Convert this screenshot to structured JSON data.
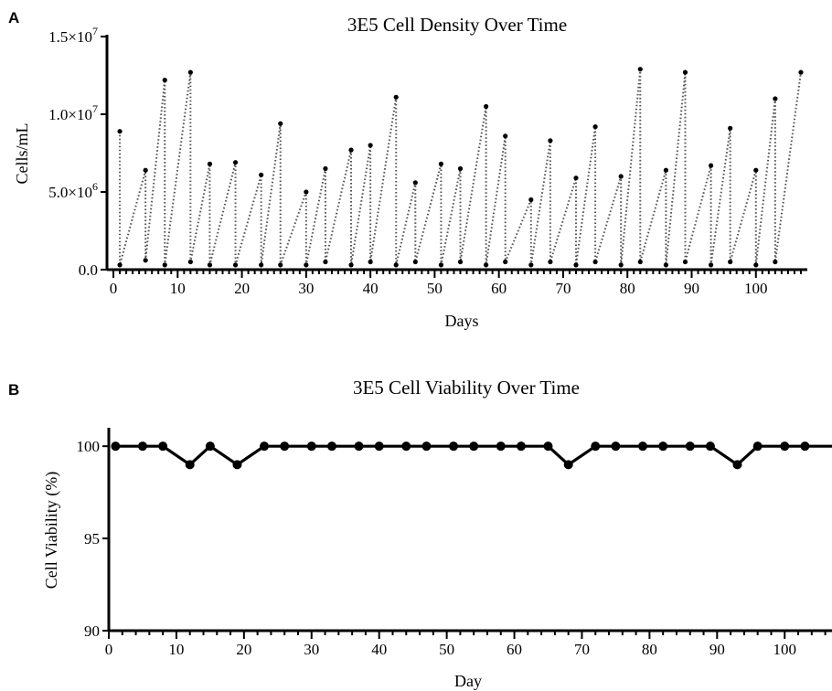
{
  "chart_data": [
    {
      "panel": "A",
      "type": "line",
      "title": "3E5 Cell Density Over Time",
      "xlabel": "Days",
      "ylabel": "Cells/mL",
      "xlim": [
        -1,
        108
      ],
      "ylim": [
        0,
        15000000
      ],
      "x_ticks": [
        "0",
        "10",
        "20",
        "30",
        "40",
        "50",
        "60",
        "70",
        "80",
        "90",
        "100"
      ],
      "y_ticks": [
        {
          "value": 0,
          "mantissa": "0.0",
          "exp": ""
        },
        {
          "value": 5000000,
          "mantissa": "5.0×10",
          "exp": "6"
        },
        {
          "value": 10000000,
          "mantissa": "1.0×10",
          "exp": "7"
        },
        {
          "value": 15000000,
          "mantissa": "1.5×10",
          "exp": "7"
        }
      ],
      "line_style": "dotted",
      "grid": false,
      "series": [
        {
          "x": [
            1,
            1,
            5,
            5,
            8,
            8,
            12,
            12,
            15,
            15,
            19,
            19,
            23,
            23,
            26,
            26,
            30,
            30,
            33,
            33,
            37,
            37,
            40,
            40,
            44,
            44,
            47,
            47,
            51,
            51,
            54,
            54,
            58,
            58,
            61,
            61,
            65,
            65,
            68,
            68,
            72,
            72,
            75,
            75,
            79,
            79,
            82,
            82,
            86,
            86,
            89,
            89,
            93,
            93,
            96,
            96,
            100,
            100,
            103,
            103,
            107
          ],
          "y": [
            8900000,
            300000,
            6400000,
            600000,
            12200000,
            300000,
            12700000,
            500000,
            6800000,
            300000,
            6900000,
            300000,
            6100000,
            300000,
            9400000,
            300000,
            5000000,
            300000,
            6500000,
            500000,
            7700000,
            300000,
            8000000,
            500000,
            11100000,
            300000,
            5600000,
            500000,
            6800000,
            300000,
            6500000,
            500000,
            10500000,
            300000,
            8600000,
            500000,
            4500000,
            300000,
            8300000,
            500000,
            5900000,
            300000,
            9200000,
            500000,
            6000000,
            300000,
            12900000,
            500000,
            6400000,
            300000,
            12700000,
            500000,
            6700000,
            300000,
            9100000,
            500000,
            6400000,
            300000,
            11000000,
            500000,
            12700000
          ]
        }
      ]
    },
    {
      "panel": "B",
      "type": "line",
      "title": "3E5 Cell Viability Over Time",
      "xlabel": "Day",
      "ylabel": "Cell Viability (%)",
      "xlim": [
        0,
        107
      ],
      "ylim": [
        90,
        101
      ],
      "x_ticks": [
        "0",
        "10",
        "20",
        "30",
        "40",
        "50",
        "60",
        "70",
        "80",
        "90",
        "100"
      ],
      "y_ticks": [
        "90",
        "95",
        "100"
      ],
      "grid": false,
      "series": [
        {
          "x": [
            1,
            5,
            8,
            12,
            15,
            19,
            23,
            26,
            30,
            33,
            37,
            40,
            44,
            47,
            51,
            54,
            58,
            61,
            65,
            68,
            72,
            75,
            79,
            82,
            86,
            89,
            93,
            96,
            100,
            103
          ],
          "y": [
            100,
            100,
            100,
            99,
            100,
            99,
            100,
            100,
            100,
            100,
            100,
            100,
            100,
            100,
            100,
            100,
            100,
            100,
            100,
            99,
            100,
            100,
            100,
            100,
            100,
            100,
            99,
            100,
            100,
            100
          ]
        }
      ]
    }
  ]
}
